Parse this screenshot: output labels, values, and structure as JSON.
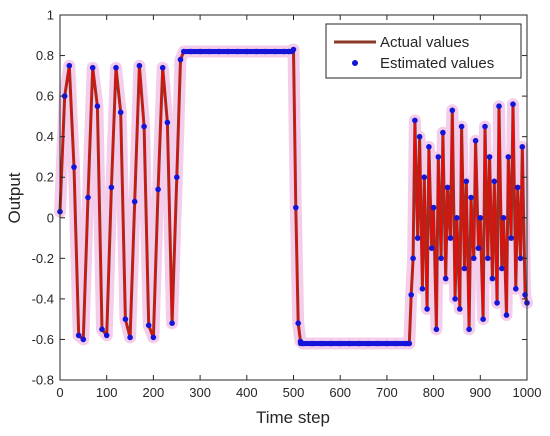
{
  "chart_data": {
    "type": "line",
    "title": "",
    "xlabel": "Time step",
    "ylabel": "Output",
    "xlim": [
      0,
      1000
    ],
    "ylim": [
      -0.8,
      1
    ],
    "xticks": [
      "0",
      "100",
      "200",
      "300",
      "400",
      "500",
      "600",
      "700",
      "800",
      "900",
      "1000"
    ],
    "yticks": [
      "-0.8",
      "-0.6",
      "-0.4",
      "-0.2",
      "0",
      "0.2",
      "0.4",
      "0.6",
      "0.8",
      "1"
    ],
    "grid": false,
    "legend_position": "top-right",
    "colors": {
      "actual": "#b22222",
      "actual_stroke": "#8b3a2a",
      "estimated": "#1515d8",
      "band": "#f2c4e8",
      "oscillation": "#ff0000",
      "axis": "#262626"
    },
    "series": [
      {
        "name": "Actual values",
        "style": "line",
        "x": [
          0,
          10,
          20,
          30,
          40,
          50,
          60,
          70,
          80,
          90,
          100,
          110,
          120,
          130,
          140,
          150,
          160,
          170,
          180,
          190,
          200,
          210,
          220,
          230,
          240,
          250,
          258,
          265,
          280,
          300,
          320,
          340,
          360,
          380,
          400,
          420,
          440,
          460,
          480,
          490,
          500,
          505,
          510,
          515,
          520,
          540,
          560,
          580,
          600,
          620,
          640,
          660,
          680,
          700,
          720,
          740,
          748,
          752,
          756,
          760,
          766,
          770,
          776,
          780,
          786,
          790,
          796,
          800,
          806,
          810,
          816,
          820,
          826,
          830,
          836,
          840,
          846,
          850,
          856,
          860,
          866,
          870,
          876,
          880,
          886,
          890,
          896,
          900,
          906,
          910,
          916,
          920,
          926,
          930,
          936,
          940,
          946,
          950,
          956,
          960,
          966,
          970,
          976,
          980,
          986,
          990,
          996,
          1000
        ],
        "y": [
          0.03,
          0.6,
          0.75,
          0.25,
          -0.58,
          -0.6,
          0.1,
          0.74,
          0.55,
          -0.55,
          -0.58,
          0.15,
          0.74,
          0.52,
          -0.5,
          -0.59,
          0.08,
          0.75,
          0.45,
          -0.53,
          -0.59,
          0.14,
          0.74,
          0.47,
          -0.52,
          0.2,
          0.78,
          0.82,
          0.82,
          0.82,
          0.82,
          0.82,
          0.82,
          0.82,
          0.82,
          0.82,
          0.82,
          0.82,
          0.82,
          0.82,
          0.83,
          0.05,
          -0.52,
          -0.61,
          -0.62,
          -0.62,
          -0.62,
          -0.62,
          -0.62,
          -0.62,
          -0.62,
          -0.62,
          -0.62,
          -0.62,
          -0.62,
          -0.62,
          -0.62,
          -0.38,
          -0.2,
          0.48,
          -0.1,
          0.4,
          -0.35,
          0.2,
          -0.45,
          0.35,
          -0.15,
          0.05,
          -0.55,
          0.3,
          -0.2,
          0.42,
          -0.3,
          0.15,
          -0.1,
          0.53,
          -0.4,
          0.0,
          -0.45,
          0.45,
          -0.25,
          0.18,
          -0.55,
          0.1,
          -0.2,
          0.38,
          -0.15,
          0.0,
          -0.5,
          0.45,
          -0.2,
          0.3,
          -0.3,
          0.18,
          -0.42,
          0.55,
          -0.25,
          0.0,
          -0.48,
          0.3,
          -0.1,
          0.56,
          -0.35,
          0.15,
          -0.2,
          0.35,
          -0.38,
          -0.42
        ]
      },
      {
        "name": "Estimated values",
        "style": "markers",
        "x": [
          0,
          10,
          20,
          30,
          40,
          50,
          60,
          70,
          80,
          90,
          100,
          110,
          120,
          130,
          140,
          150,
          160,
          170,
          180,
          190,
          200,
          210,
          220,
          230,
          240,
          250,
          258,
          265,
          280,
          300,
          320,
          340,
          360,
          380,
          400,
          420,
          440,
          460,
          480,
          490,
          500,
          505,
          510,
          515,
          520,
          540,
          560,
          580,
          600,
          620,
          640,
          660,
          680,
          700,
          720,
          740,
          748,
          752,
          756,
          760,
          766,
          770,
          776,
          780,
          786,
          790,
          796,
          800,
          806,
          810,
          816,
          820,
          826,
          830,
          836,
          840,
          846,
          850,
          856,
          860,
          866,
          870,
          876,
          880,
          886,
          890,
          896,
          900,
          906,
          910,
          916,
          920,
          926,
          930,
          936,
          940,
          946,
          950,
          956,
          960,
          966,
          970,
          976,
          980,
          986,
          990,
          996,
          1000
        ],
        "y": [
          0.03,
          0.6,
          0.75,
          0.25,
          -0.58,
          -0.6,
          0.1,
          0.74,
          0.55,
          -0.55,
          -0.58,
          0.15,
          0.74,
          0.52,
          -0.5,
          -0.59,
          0.08,
          0.75,
          0.45,
          -0.53,
          -0.59,
          0.14,
          0.74,
          0.47,
          -0.52,
          0.2,
          0.78,
          0.82,
          0.82,
          0.82,
          0.82,
          0.82,
          0.82,
          0.82,
          0.82,
          0.82,
          0.82,
          0.82,
          0.82,
          0.82,
          0.83,
          0.05,
          -0.52,
          -0.61,
          -0.62,
          -0.62,
          -0.62,
          -0.62,
          -0.62,
          -0.62,
          -0.62,
          -0.62,
          -0.62,
          -0.62,
          -0.62,
          -0.62,
          -0.62,
          -0.38,
          -0.2,
          0.48,
          -0.1,
          0.4,
          -0.35,
          0.2,
          -0.45,
          0.35,
          -0.15,
          0.05,
          -0.55,
          0.3,
          -0.2,
          0.42,
          -0.3,
          0.15,
          -0.1,
          0.53,
          -0.4,
          0.0,
          -0.45,
          0.45,
          -0.25,
          0.18,
          -0.55,
          0.1,
          -0.2,
          0.38,
          -0.15,
          0.0,
          -0.5,
          0.45,
          -0.2,
          0.3,
          -0.3,
          0.18,
          -0.42,
          0.55,
          -0.25,
          0.0,
          -0.48,
          0.3,
          -0.1,
          0.56,
          -0.35,
          0.15,
          -0.2,
          0.35,
          -0.38,
          -0.42
        ]
      }
    ]
  }
}
